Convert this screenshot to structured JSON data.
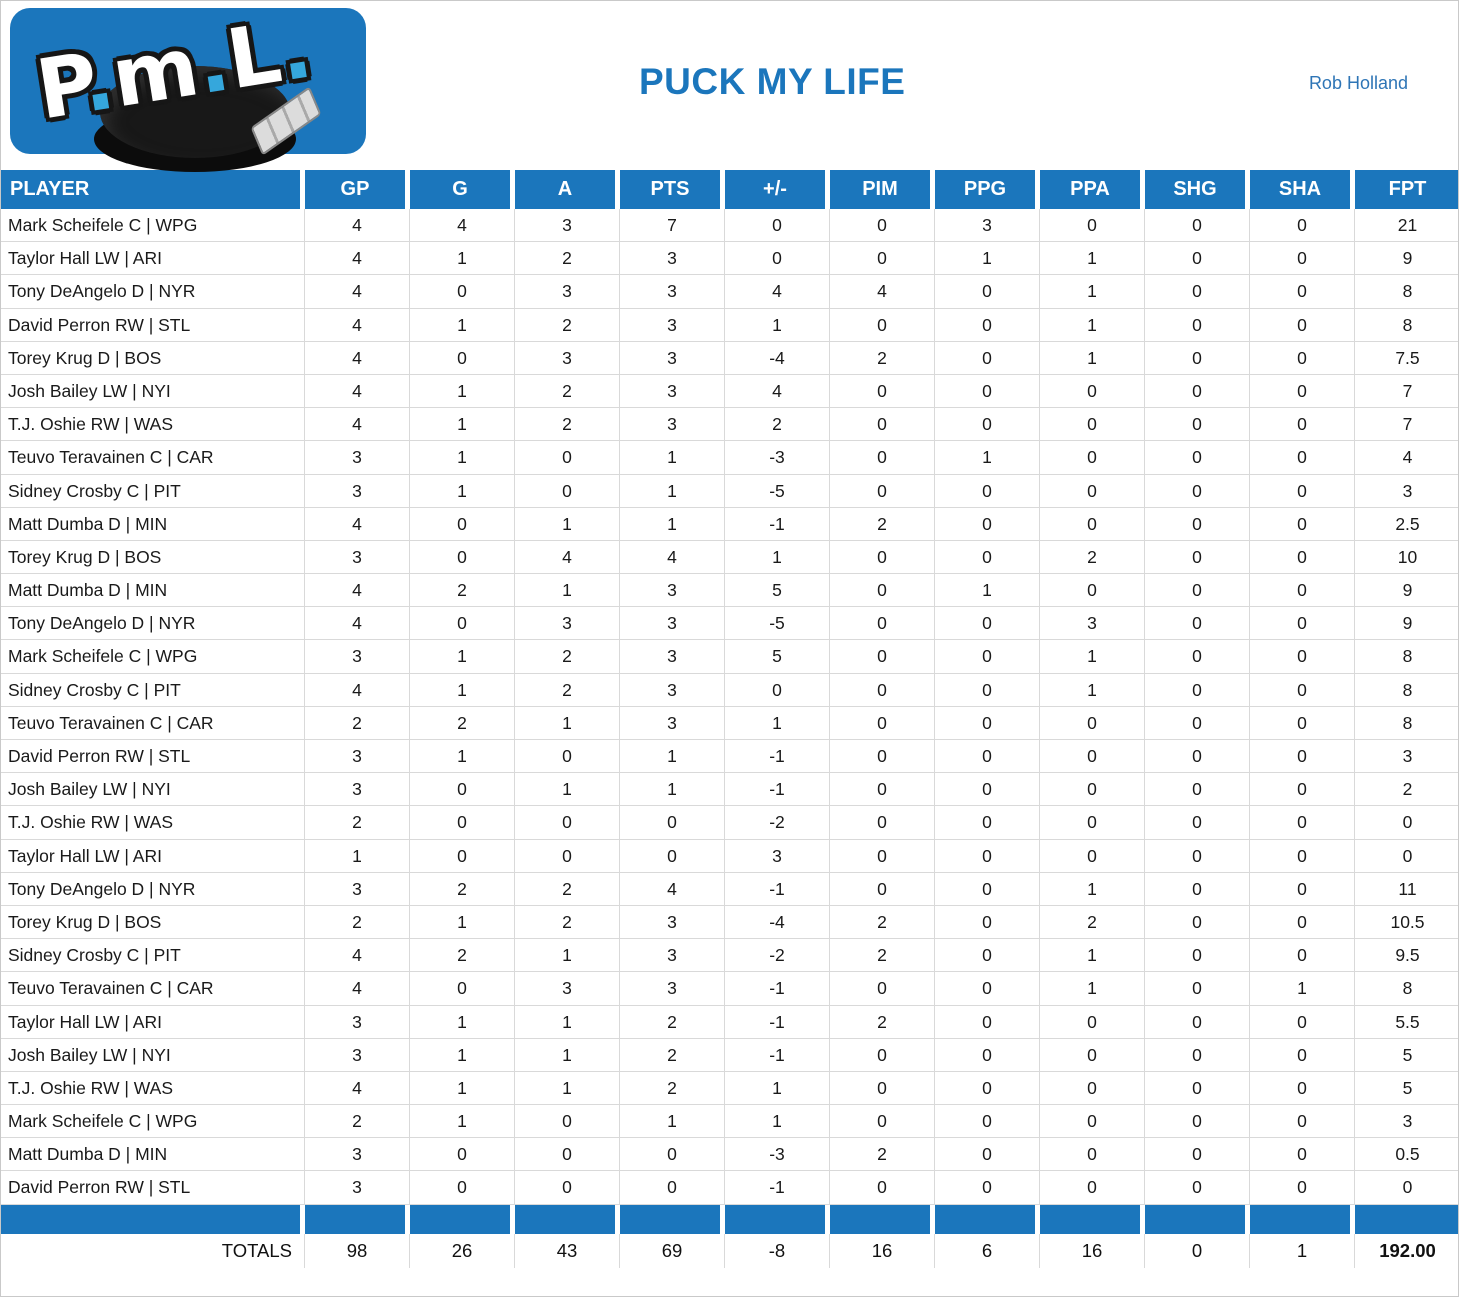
{
  "logo": {
    "letters": [
      "P",
      "m",
      "L"
    ],
    "bg_color": "#1b76bc",
    "dot_color": "#35a7dc"
  },
  "header": {
    "title": "PUCK MY LIFE",
    "author": "Rob Holland"
  },
  "colors": {
    "accent_blue": "#1b76bc",
    "author_blue": "#2e75b6",
    "gridline": "#d9d9d9"
  },
  "table": {
    "columns": [
      "PLAYER",
      "GP",
      "G",
      "A",
      "PTS",
      "+/-",
      "PIM",
      "PPG",
      "PPA",
      "SHG",
      "SHA",
      "FPT"
    ],
    "rows": [
      [
        "Mark Scheifele C | WPG",
        "4",
        "4",
        "3",
        "7",
        "0",
        "0",
        "3",
        "0",
        "0",
        "0",
        "21"
      ],
      [
        "Taylor Hall LW | ARI",
        "4",
        "1",
        "2",
        "3",
        "0",
        "0",
        "1",
        "1",
        "0",
        "0",
        "9"
      ],
      [
        "Tony DeAngelo D | NYR",
        "4",
        "0",
        "3",
        "3",
        "4",
        "4",
        "0",
        "1",
        "0",
        "0",
        "8"
      ],
      [
        "David Perron RW | STL",
        "4",
        "1",
        "2",
        "3",
        "1",
        "0",
        "0",
        "1",
        "0",
        "0",
        "8"
      ],
      [
        "Torey Krug D | BOS",
        "4",
        "0",
        "3",
        "3",
        "-4",
        "2",
        "0",
        "1",
        "0",
        "0",
        "7.5"
      ],
      [
        "Josh Bailey LW | NYI",
        "4",
        "1",
        "2",
        "3",
        "4",
        "0",
        "0",
        "0",
        "0",
        "0",
        "7"
      ],
      [
        "T.J. Oshie RW | WAS",
        "4",
        "1",
        "2",
        "3",
        "2",
        "0",
        "0",
        "0",
        "0",
        "0",
        "7"
      ],
      [
        "Teuvo Teravainen C | CAR",
        "3",
        "1",
        "0",
        "1",
        "-3",
        "0",
        "1",
        "0",
        "0",
        "0",
        "4"
      ],
      [
        "Sidney Crosby C | PIT",
        "3",
        "1",
        "0",
        "1",
        "-5",
        "0",
        "0",
        "0",
        "0",
        "0",
        "3"
      ],
      [
        "Matt Dumba D | MIN",
        "4",
        "0",
        "1",
        "1",
        "-1",
        "2",
        "0",
        "0",
        "0",
        "0",
        "2.5"
      ],
      [
        "Torey Krug D | BOS",
        "3",
        "0",
        "4",
        "4",
        "1",
        "0",
        "0",
        "2",
        "0",
        "0",
        "10"
      ],
      [
        "Matt Dumba D | MIN",
        "4",
        "2",
        "1",
        "3",
        "5",
        "0",
        "1",
        "0",
        "0",
        "0",
        "9"
      ],
      [
        "Tony DeAngelo D | NYR",
        "4",
        "0",
        "3",
        "3",
        "-5",
        "0",
        "0",
        "3",
        "0",
        "0",
        "9"
      ],
      [
        "Mark Scheifele C | WPG",
        "3",
        "1",
        "2",
        "3",
        "5",
        "0",
        "0",
        "1",
        "0",
        "0",
        "8"
      ],
      [
        "Sidney Crosby C | PIT",
        "4",
        "1",
        "2",
        "3",
        "0",
        "0",
        "0",
        "1",
        "0",
        "0",
        "8"
      ],
      [
        "Teuvo Teravainen C | CAR",
        "2",
        "2",
        "1",
        "3",
        "1",
        "0",
        "0",
        "0",
        "0",
        "0",
        "8"
      ],
      [
        "David Perron RW | STL",
        "3",
        "1",
        "0",
        "1",
        "-1",
        "0",
        "0",
        "0",
        "0",
        "0",
        "3"
      ],
      [
        "Josh Bailey LW | NYI",
        "3",
        "0",
        "1",
        "1",
        "-1",
        "0",
        "0",
        "0",
        "0",
        "0",
        "2"
      ],
      [
        "T.J. Oshie RW | WAS",
        "2",
        "0",
        "0",
        "0",
        "-2",
        "0",
        "0",
        "0",
        "0",
        "0",
        "0"
      ],
      [
        "Taylor Hall LW | ARI",
        "1",
        "0",
        "0",
        "0",
        "3",
        "0",
        "0",
        "0",
        "0",
        "0",
        "0"
      ],
      [
        "Tony DeAngelo D | NYR",
        "3",
        "2",
        "2",
        "4",
        "-1",
        "0",
        "0",
        "1",
        "0",
        "0",
        "11"
      ],
      [
        "Torey Krug D | BOS",
        "2",
        "1",
        "2",
        "3",
        "-4",
        "2",
        "0",
        "2",
        "0",
        "0",
        "10.5"
      ],
      [
        "Sidney Crosby C | PIT",
        "4",
        "2",
        "1",
        "3",
        "-2",
        "2",
        "0",
        "1",
        "0",
        "0",
        "9.5"
      ],
      [
        "Teuvo Teravainen C | CAR",
        "4",
        "0",
        "3",
        "3",
        "-1",
        "0",
        "0",
        "1",
        "0",
        "1",
        "8"
      ],
      [
        "Taylor Hall LW | ARI",
        "3",
        "1",
        "1",
        "2",
        "-1",
        "2",
        "0",
        "0",
        "0",
        "0",
        "5.5"
      ],
      [
        "Josh Bailey LW | NYI",
        "3",
        "1",
        "1",
        "2",
        "-1",
        "0",
        "0",
        "0",
        "0",
        "0",
        "5"
      ],
      [
        "T.J. Oshie RW | WAS",
        "4",
        "1",
        "1",
        "2",
        "1",
        "0",
        "0",
        "0",
        "0",
        "0",
        "5"
      ],
      [
        "Mark Scheifele C | WPG",
        "2",
        "1",
        "0",
        "1",
        "1",
        "0",
        "0",
        "0",
        "0",
        "0",
        "3"
      ],
      [
        "Matt Dumba D | MIN",
        "3",
        "0",
        "0",
        "0",
        "-3",
        "2",
        "0",
        "0",
        "0",
        "0",
        "0.5"
      ],
      [
        "David Perron RW | STL",
        "3",
        "0",
        "0",
        "0",
        "-1",
        "0",
        "0",
        "0",
        "0",
        "0",
        "0"
      ]
    ],
    "totals": {
      "label": "TOTALS",
      "values": [
        "98",
        "26",
        "43",
        "69",
        "-8",
        "16",
        "6",
        "16",
        "0",
        "1",
        "192.00"
      ]
    }
  }
}
